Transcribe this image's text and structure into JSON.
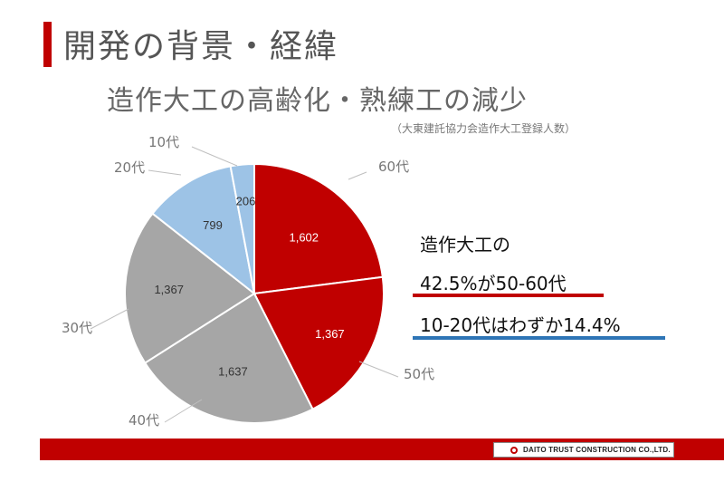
{
  "slide": {
    "title": "開発の背景・経緯",
    "subtitle": "造作大工の高齢化・熟練工の減少",
    "note": "（大東建託協力会造作大工登録人数）"
  },
  "callout": {
    "title": "造作大工の",
    "line1": "42.5%が50-60代",
    "line2": "10-20代はわずか14.4%",
    "line1_color": "#c00000",
    "line2_color": "#2e75b6"
  },
  "footer": {
    "logo_text": "DAITO TRUST CONSTRUCTION CO.,LTD.",
    "bar_color": "#c00000"
  },
  "chart_data": {
    "type": "pie",
    "start": "top",
    "direction": "clockwise",
    "slices": [
      {
        "category": "60代",
        "value": 1602,
        "value_label": "1,602",
        "color": "#c00000"
      },
      {
        "category": "50代",
        "value": 1367,
        "value_label": "1,367",
        "color": "#c00000"
      },
      {
        "category": "40代",
        "value": 1637,
        "value_label": "1,637",
        "color": "#a6a6a6"
      },
      {
        "category": "30代",
        "value": 1367,
        "value_label": "1,367",
        "color": "#a6a6a6"
      },
      {
        "category": "20代",
        "value": 799,
        "value_label": "799",
        "color": "#9dc3e6"
      },
      {
        "category": "10代",
        "value": 206,
        "value_label": "206",
        "color": "#9dc3e6"
      }
    ]
  }
}
